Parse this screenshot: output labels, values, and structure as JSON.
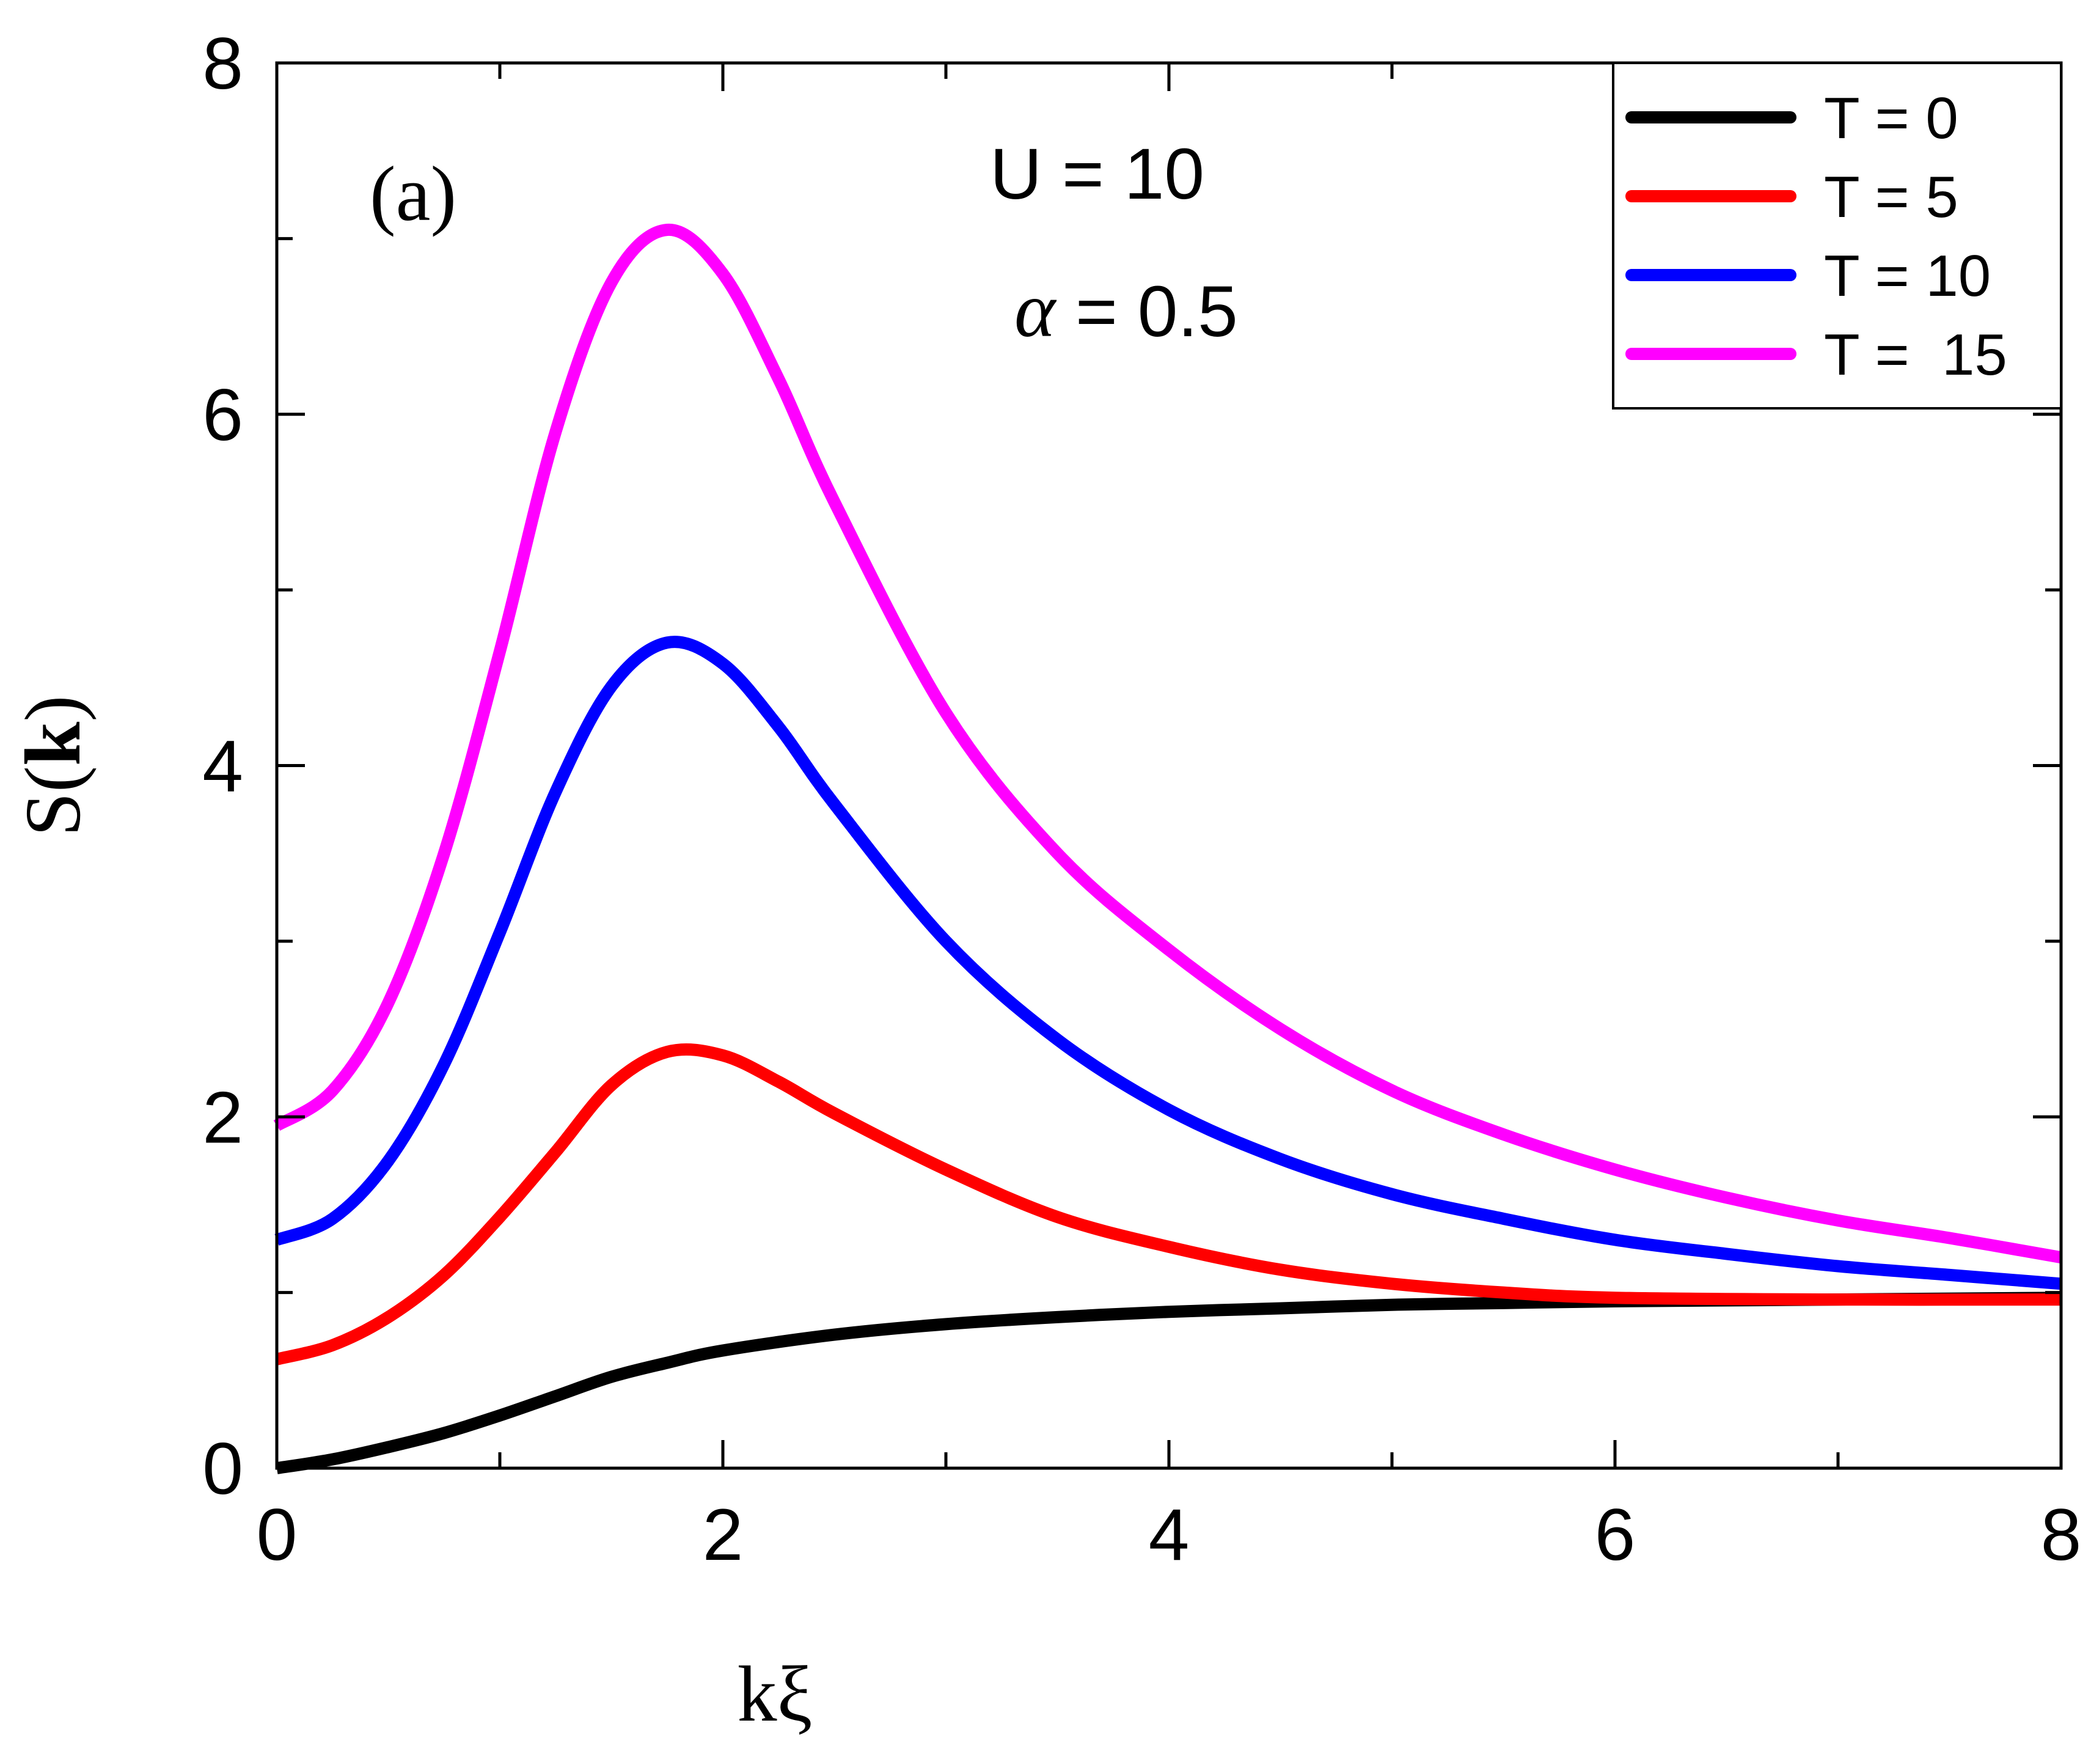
{
  "chart_data": {
    "type": "line",
    "panel_label": "(a)",
    "annotations": {
      "U": "U = 10",
      "alpha_symbol": "α",
      "alpha_value": "= 0.5"
    },
    "xlabel": "kξ",
    "ylabel_prefix": "S(",
    "ylabel_bold": "k",
    "ylabel_suffix": ")",
    "xlim": [
      0,
      8
    ],
    "ylim": [
      0,
      8
    ],
    "xticks": [
      "0",
      "2",
      "4",
      "6",
      "8"
    ],
    "yticks": [
      "0",
      "2",
      "4",
      "6",
      "8"
    ],
    "legend_position": "top-right",
    "series": [
      {
        "name": "T = 0",
        "color": "#000000",
        "x": [
          0,
          0.25,
          0.5,
          0.75,
          1,
          1.25,
          1.5,
          1.75,
          2,
          2.5,
          3,
          3.5,
          4,
          4.5,
          5,
          5.5,
          6,
          7,
          8
        ],
        "y": [
          0,
          0.05,
          0.12,
          0.2,
          0.3,
          0.41,
          0.52,
          0.6,
          0.67,
          0.76,
          0.82,
          0.86,
          0.89,
          0.91,
          0.93,
          0.94,
          0.95,
          0.96,
          0.97
        ]
      },
      {
        "name": "T = 5",
        "color": "#ff0000",
        "x": [
          0,
          0.25,
          0.5,
          0.75,
          1,
          1.25,
          1.5,
          1.75,
          2,
          2.25,
          2.5,
          3,
          3.5,
          4,
          4.5,
          5,
          5.5,
          6,
          7,
          8
        ],
        "y": [
          0.62,
          0.7,
          0.86,
          1.1,
          1.43,
          1.8,
          2.18,
          2.37,
          2.35,
          2.2,
          2.02,
          1.7,
          1.43,
          1.26,
          1.13,
          1.05,
          1.0,
          0.97,
          0.96,
          0.96
        ]
      },
      {
        "name": "T = 10",
        "color": "#0000ff",
        "x": [
          0,
          0.25,
          0.5,
          0.75,
          1,
          1.25,
          1.5,
          1.75,
          2,
          2.25,
          2.5,
          3,
          3.5,
          4,
          4.5,
          5,
          5.5,
          6,
          6.5,
          7,
          7.5,
          8
        ],
        "y": [
          1.3,
          1.42,
          1.75,
          2.3,
          3.05,
          3.85,
          4.45,
          4.7,
          4.58,
          4.22,
          3.78,
          3.0,
          2.44,
          2.04,
          1.76,
          1.56,
          1.42,
          1.3,
          1.22,
          1.15,
          1.1,
          1.05
        ]
      },
      {
        "name": "T =  15",
        "color": "#ff00ff",
        "x": [
          0,
          0.25,
          0.5,
          0.75,
          1,
          1.25,
          1.5,
          1.75,
          2,
          2.25,
          2.5,
          3,
          3.5,
          4,
          4.5,
          5,
          5.5,
          6,
          6.5,
          7,
          7.5,
          8
        ],
        "y": [
          1.95,
          2.15,
          2.65,
          3.5,
          4.65,
          5.9,
          6.75,
          7.05,
          6.8,
          6.2,
          5.5,
          4.3,
          3.5,
          2.95,
          2.5,
          2.15,
          1.9,
          1.7,
          1.54,
          1.41,
          1.31,
          1.2
        ]
      }
    ]
  }
}
